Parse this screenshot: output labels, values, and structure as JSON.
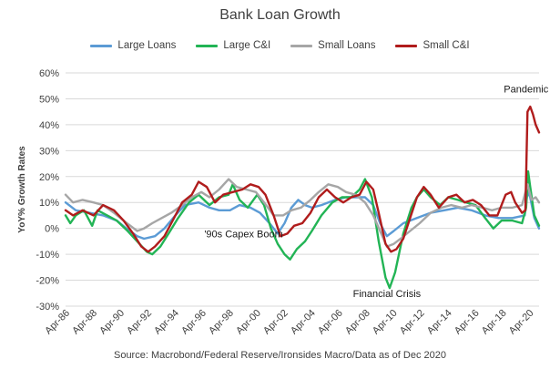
{
  "chart_data": {
    "type": "line",
    "title": "Bank Loan Growth",
    "ylabel": "YoY% Growth Rates",
    "xlabel": "",
    "source": "Source: Macrobond/Federal Reserve/Ironsides Macro/Data as of Dec 2020",
    "ylim": [
      -30,
      60
    ],
    "yticks": [
      "-30%",
      "-20%",
      "-10%",
      "0%",
      "10%",
      "20%",
      "30%",
      "40%",
      "50%",
      "60%"
    ],
    "xlim": [
      1986.25,
      2020.95
    ],
    "xticks": [
      "Apr-86",
      "Apr-88",
      "Apr-90",
      "Apr-92",
      "Apr-94",
      "Apr-96",
      "Apr-98",
      "Apr-00",
      "Apr-02",
      "Apr-04",
      "Apr-06",
      "Apr-08",
      "Apr-10",
      "Apr-12",
      "Apr-14",
      "Apr-16",
      "Apr-18",
      "Apr-20"
    ],
    "grid": "horizontal",
    "legend_position": "top",
    "annotations": [
      {
        "text": "'90s Capex Boom",
        "x": 1999.3,
        "y": -3.5
      },
      {
        "text": "Financial Crisis",
        "x": 2009.8,
        "y": -26.5
      },
      {
        "text": "Pandemic",
        "x": 2020.0,
        "y": 52.5
      }
    ],
    "series": [
      {
        "name": "Large Loans",
        "color": "#5b9bd5",
        "points": [
          [
            1986.25,
            10
          ],
          [
            1987,
            7
          ],
          [
            1988,
            6
          ],
          [
            1989,
            5
          ],
          [
            1990,
            3
          ],
          [
            1990.7,
            0
          ],
          [
            1991.5,
            -3
          ],
          [
            1992,
            -4
          ],
          [
            1992.8,
            -3
          ],
          [
            1993.5,
            0
          ],
          [
            1994.3,
            5
          ],
          [
            1995,
            9
          ],
          [
            1996,
            10
          ],
          [
            1996.8,
            8
          ],
          [
            1997.5,
            7
          ],
          [
            1998.3,
            7
          ],
          [
            1999,
            9
          ],
          [
            1999.8,
            8
          ],
          [
            2000.5,
            6
          ],
          [
            2001.2,
            2
          ],
          [
            2001.8,
            -2
          ],
          [
            2002.3,
            2
          ],
          [
            2002.8,
            8
          ],
          [
            2003.3,
            11
          ],
          [
            2003.8,
            9
          ],
          [
            2004.3,
            8
          ],
          [
            2005,
            9
          ],
          [
            2006,
            11
          ],
          [
            2006.8,
            12
          ],
          [
            2007.5,
            12
          ],
          [
            2008.2,
            12
          ],
          [
            2008.8,
            9
          ],
          [
            2009.3,
            2
          ],
          [
            2009.8,
            -3
          ],
          [
            2010.3,
            -1
          ],
          [
            2011,
            2
          ],
          [
            2012,
            4
          ],
          [
            2013,
            6
          ],
          [
            2014,
            7
          ],
          [
            2015,
            8
          ],
          [
            2016,
            7
          ],
          [
            2017,
            5
          ],
          [
            2018,
            4
          ],
          [
            2019,
            4
          ],
          [
            2019.9,
            5
          ],
          [
            2020.1,
            14
          ],
          [
            2020.3,
            12
          ],
          [
            2020.6,
            4
          ],
          [
            2020.95,
            0
          ]
        ]
      },
      {
        "name": "Large C&I",
        "color": "#22b455",
        "points": [
          [
            1986.25,
            5
          ],
          [
            1986.6,
            2
          ],
          [
            1987,
            5
          ],
          [
            1987.6,
            7
          ],
          [
            1988.2,
            1
          ],
          [
            1988.6,
            7
          ],
          [
            1989.3,
            5
          ],
          [
            1990,
            3
          ],
          [
            1990.8,
            -1
          ],
          [
            1991.5,
            -5
          ],
          [
            1992.2,
            -9
          ],
          [
            1992.6,
            -10
          ],
          [
            1993.2,
            -7
          ],
          [
            1993.8,
            -2
          ],
          [
            1994.5,
            4
          ],
          [
            1995.3,
            10
          ],
          [
            1996,
            13
          ],
          [
            1996.8,
            9
          ],
          [
            1997.5,
            12
          ],
          [
            1998.2,
            13
          ],
          [
            1998.5,
            17
          ],
          [
            1999,
            11
          ],
          [
            1999.6,
            8
          ],
          [
            2000.3,
            13
          ],
          [
            2000.8,
            9
          ],
          [
            2001.3,
            0
          ],
          [
            2001.8,
            -6
          ],
          [
            2002.3,
            -10
          ],
          [
            2002.7,
            -12
          ],
          [
            2003.2,
            -8
          ],
          [
            2003.8,
            -5
          ],
          [
            2004.3,
            -1
          ],
          [
            2005,
            5
          ],
          [
            2005.8,
            10
          ],
          [
            2006.5,
            12
          ],
          [
            2007.2,
            12
          ],
          [
            2007.8,
            15
          ],
          [
            2008.2,
            19
          ],
          [
            2008.7,
            12
          ],
          [
            2009.2,
            -5
          ],
          [
            2009.7,
            -19
          ],
          [
            2010,
            -23
          ],
          [
            2010.4,
            -17
          ],
          [
            2011,
            -2
          ],
          [
            2011.6,
            8
          ],
          [
            2012,
            12
          ],
          [
            2012.5,
            15
          ],
          [
            2013,
            12
          ],
          [
            2013.7,
            9
          ],
          [
            2014.3,
            12
          ],
          [
            2015,
            11
          ],
          [
            2015.6,
            10
          ],
          [
            2016.3,
            9
          ],
          [
            2017,
            4
          ],
          [
            2017.6,
            0
          ],
          [
            2018.2,
            3
          ],
          [
            2019,
            3
          ],
          [
            2019.7,
            2
          ],
          [
            2020,
            8
          ],
          [
            2020.15,
            22
          ],
          [
            2020.3,
            16
          ],
          [
            2020.6,
            5
          ],
          [
            2020.95,
            1
          ]
        ]
      },
      {
        "name": "Small Loans",
        "color": "#a6a6a6",
        "points": [
          [
            1986.25,
            13
          ],
          [
            1986.8,
            10
          ],
          [
            1987.5,
            11
          ],
          [
            1988.3,
            10
          ],
          [
            1989,
            9
          ],
          [
            1989.8,
            6
          ],
          [
            1990.5,
            3
          ],
          [
            1991,
            1
          ],
          [
            1991.5,
            -1
          ],
          [
            1992,
            0
          ],
          [
            1992.6,
            2
          ],
          [
            1993.3,
            4
          ],
          [
            1994,
            6
          ],
          [
            1994.8,
            9
          ],
          [
            1995.5,
            12
          ],
          [
            1996.2,
            14
          ],
          [
            1996.8,
            12
          ],
          [
            1997.5,
            15
          ],
          [
            1998.2,
            19
          ],
          [
            1998.8,
            16
          ],
          [
            1999.5,
            15
          ],
          [
            2000.2,
            14
          ],
          [
            2000.8,
            10
          ],
          [
            2001.5,
            5
          ],
          [
            2002.2,
            5
          ],
          [
            2002.8,
            7
          ],
          [
            2003.5,
            8
          ],
          [
            2004.2,
            11
          ],
          [
            2004.8,
            14
          ],
          [
            2005.5,
            17
          ],
          [
            2006.2,
            16
          ],
          [
            2006.8,
            14
          ],
          [
            2007.5,
            13
          ],
          [
            2008.2,
            10
          ],
          [
            2008.8,
            5
          ],
          [
            2009.3,
            -1
          ],
          [
            2009.8,
            -7
          ],
          [
            2010.3,
            -6
          ],
          [
            2010.8,
            -4
          ],
          [
            2011.5,
            -1
          ],
          [
            2012.2,
            2
          ],
          [
            2013,
            6
          ],
          [
            2013.8,
            8
          ],
          [
            2014.5,
            9
          ],
          [
            2015.3,
            8
          ],
          [
            2016,
            9
          ],
          [
            2016.8,
            8
          ],
          [
            2017.5,
            7
          ],
          [
            2018.2,
            8
          ],
          [
            2019,
            8
          ],
          [
            2019.7,
            9
          ],
          [
            2020.1,
            17
          ],
          [
            2020.4,
            11
          ],
          [
            2020.7,
            12
          ],
          [
            2020.95,
            10
          ]
        ]
      },
      {
        "name": "Small C&I",
        "color": "#b01c1c",
        "points": [
          [
            1986.25,
            7
          ],
          [
            1986.8,
            5
          ],
          [
            1987.5,
            7
          ],
          [
            1988.3,
            5
          ],
          [
            1989,
            9
          ],
          [
            1989.8,
            7
          ],
          [
            1990.5,
            3
          ],
          [
            1991.2,
            -2
          ],
          [
            1991.8,
            -7
          ],
          [
            1992.3,
            -9
          ],
          [
            1992.8,
            -7
          ],
          [
            1993.5,
            -3
          ],
          [
            1994.2,
            4
          ],
          [
            1994.8,
            10
          ],
          [
            1995.5,
            13
          ],
          [
            1996,
            18
          ],
          [
            1996.6,
            16
          ],
          [
            1997.2,
            10
          ],
          [
            1997.8,
            13
          ],
          [
            1998.5,
            14
          ],
          [
            1999.2,
            15
          ],
          [
            1999.8,
            17
          ],
          [
            2000.4,
            16
          ],
          [
            2000.9,
            13
          ],
          [
            2001.5,
            5
          ],
          [
            2002,
            -3
          ],
          [
            2002.5,
            -2
          ],
          [
            2003,
            1
          ],
          [
            2003.6,
            2
          ],
          [
            2004.2,
            6
          ],
          [
            2004.8,
            12
          ],
          [
            2005.4,
            15
          ],
          [
            2006,
            12
          ],
          [
            2006.6,
            10
          ],
          [
            2007.2,
            12
          ],
          [
            2007.8,
            13
          ],
          [
            2008.3,
            18
          ],
          [
            2008.8,
            15
          ],
          [
            2009.2,
            6
          ],
          [
            2009.7,
            -6
          ],
          [
            2010.1,
            -9
          ],
          [
            2010.5,
            -8
          ],
          [
            2011,
            -4
          ],
          [
            2011.5,
            4
          ],
          [
            2012,
            12
          ],
          [
            2012.5,
            16
          ],
          [
            2013,
            13
          ],
          [
            2013.6,
            8
          ],
          [
            2014.3,
            12
          ],
          [
            2014.9,
            13
          ],
          [
            2015.5,
            10
          ],
          [
            2016.1,
            11
          ],
          [
            2016.7,
            9
          ],
          [
            2017.3,
            5
          ],
          [
            2017.9,
            5
          ],
          [
            2018.5,
            13
          ],
          [
            2018.9,
            14
          ],
          [
            2019.2,
            10
          ],
          [
            2019.7,
            6
          ],
          [
            2019.95,
            7
          ],
          [
            2020.1,
            45
          ],
          [
            2020.3,
            47
          ],
          [
            2020.5,
            44
          ],
          [
            2020.7,
            40
          ],
          [
            2020.95,
            37
          ]
        ]
      }
    ]
  }
}
